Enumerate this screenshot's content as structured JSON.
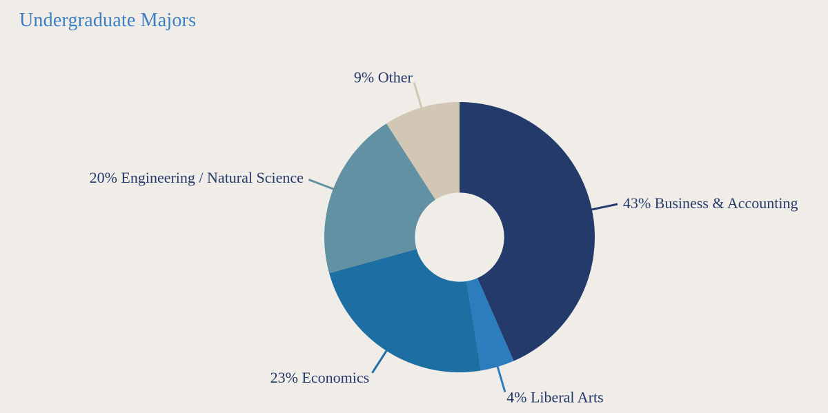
{
  "page": {
    "background_color": "#f0ece7"
  },
  "title": {
    "text": "Undergraduate Majors",
    "color": "#3c80c4"
  },
  "chart_data": {
    "type": "pie",
    "subtype": "donut",
    "title": "Undergraduate Majors",
    "categories": [
      "Business & Accounting",
      "Liberal Arts",
      "Economics",
      "Engineering / Natural Science",
      "Other"
    ],
    "values": [
      43,
      4,
      23,
      20,
      9
    ],
    "unit": "%",
    "labels": [
      "43% Business & Accounting",
      "4% Liberal Arts",
      "23% Economics",
      "20% Engineering / Natural Science",
      "9% Other"
    ],
    "colors": [
      "#243a6b",
      "#2b7dbe",
      "#1d6ea3",
      "#6291a3",
      "#d2c6b5"
    ],
    "label_text_color": "#243a6b",
    "start_angle_deg": 0,
    "direction": "clockwise",
    "legend_position": "none",
    "labels_placement": "outside-with-leader-lines",
    "donut_hole_ratio": 0.33,
    "background_color": "#f0ece7"
  }
}
